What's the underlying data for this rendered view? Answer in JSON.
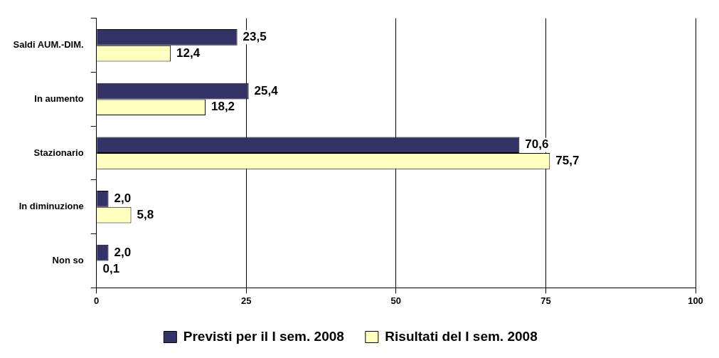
{
  "chart_data": {
    "type": "bar",
    "orientation": "horizontal",
    "categories": [
      "Saldi AUM.-DIM.",
      "In aumento",
      "Stazionario",
      "In diminuzione",
      "Non so"
    ],
    "series": [
      {
        "name": "Previsti per il I sem. 2008",
        "color": "#333366",
        "values": [
          23.5,
          25.4,
          70.6,
          2.0,
          2.0
        ],
        "value_labels": [
          "23,5",
          "25,4",
          "70,6",
          "2,0",
          "2,0"
        ]
      },
      {
        "name": "Risultati del I sem. 2008",
        "color": "#ffffc0",
        "values": [
          12.4,
          18.2,
          75.7,
          5.8,
          0.1
        ],
        "value_labels": [
          "12,4",
          "18,2",
          "75,7",
          "5,8",
          "0,1"
        ]
      }
    ],
    "xlim": [
      0,
      100
    ],
    "xticks": [
      0,
      25,
      50,
      75,
      100
    ],
    "grid": "x",
    "legend": "bottom"
  }
}
